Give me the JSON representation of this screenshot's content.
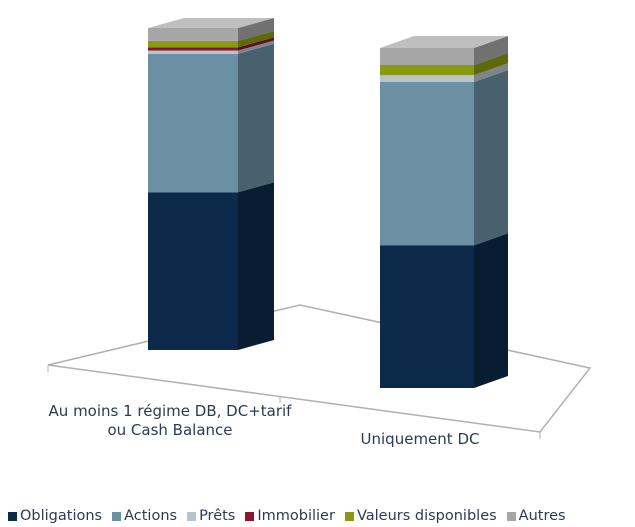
{
  "chart_data": {
    "type": "bar",
    "stacked": true,
    "categories": [
      "Au moins 1 régime DB, DC+tarif ou Cash Balance",
      "Uniquement DC"
    ],
    "series": [
      {
        "name": "Obligations",
        "color": "#0d2a4a",
        "values": [
          49,
          42
        ]
      },
      {
        "name": "Actions",
        "color": "#6b8fa3",
        "values": [
          43,
          48
        ]
      },
      {
        "name": "Prêts",
        "color": "#b8c4cc",
        "values": [
          1,
          2
        ]
      },
      {
        "name": "Immobilier",
        "color": "#8a1530",
        "values": [
          1,
          0
        ]
      },
      {
        "name": "Valeurs disponibles",
        "color": "#8a9a10",
        "values": [
          2,
          3
        ]
      },
      {
        "name": "Autres",
        "color": "#a6a6a6",
        "values": [
          4,
          5
        ]
      }
    ]
  }
}
